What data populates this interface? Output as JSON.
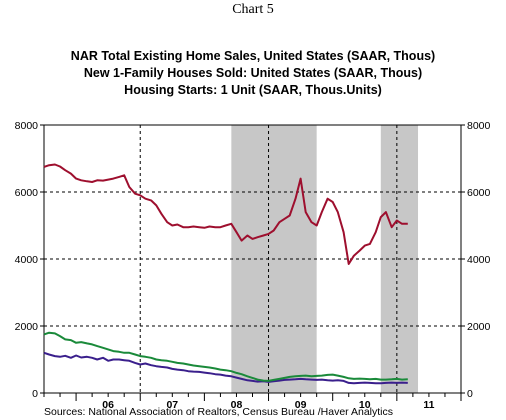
{
  "chart_data": {
    "type": "line",
    "chart_number": "Chart 5",
    "source": "Sources:  National Association of Realtors, Census Bureau /Haver Analytics",
    "ylim": [
      0,
      8000
    ],
    "y_ticks": [
      "0",
      "2000",
      "4000",
      "6000",
      "8000"
    ],
    "y_tick_values": [
      0,
      2000,
      4000,
      6000,
      8000
    ],
    "x_tick_labels": [
      "06",
      "07",
      "08",
      "09",
      "10",
      "11"
    ],
    "x_tick_positions": [
      2006.5,
      2007.5,
      2008.5,
      2009.5,
      2010.5,
      2011.5
    ],
    "xlim": [
      2005.5,
      2012.0
    ],
    "recession_shading": [
      [
        2008.42,
        2009.75
      ],
      [
        2010.75,
        2011.33
      ]
    ],
    "grid": "dashed",
    "series": [
      {
        "name": "NAR Total Existing Home Sales, United States (SAAR, Thous)",
        "color": "#9e0f2e",
        "x": [
          2005.5,
          2005.58,
          2005.67,
          2005.75,
          2005.83,
          2005.92,
          2006.0,
          2006.08,
          2006.17,
          2006.25,
          2006.33,
          2006.42,
          2006.5,
          2006.58,
          2006.67,
          2006.75,
          2006.83,
          2006.92,
          2007.0,
          2007.08,
          2007.17,
          2007.25,
          2007.33,
          2007.42,
          2007.5,
          2007.58,
          2007.67,
          2007.75,
          2007.83,
          2007.92,
          2008.0,
          2008.08,
          2008.17,
          2008.25,
          2008.33,
          2008.42,
          2008.5,
          2008.58,
          2008.67,
          2008.75,
          2008.83,
          2008.92,
          2009.0,
          2009.08,
          2009.17,
          2009.25,
          2009.33,
          2009.42,
          2009.5,
          2009.58,
          2009.67,
          2009.75,
          2009.83,
          2009.92,
          2010.0,
          2010.08,
          2010.17,
          2010.25,
          2010.33,
          2010.42,
          2010.5,
          2010.58,
          2010.67,
          2010.75,
          2010.83,
          2010.92,
          2011.0,
          2011.08,
          2011.17
        ],
        "values": [
          6750,
          6800,
          6820,
          6760,
          6650,
          6550,
          6400,
          6350,
          6320,
          6300,
          6350,
          6340,
          6370,
          6400,
          6450,
          6500,
          6150,
          5950,
          5900,
          5800,
          5750,
          5600,
          5350,
          5100,
          5000,
          5030,
          4950,
          4950,
          4970,
          4950,
          4930,
          4970,
          4950,
          4950,
          5000,
          5050,
          4800,
          4550,
          4700,
          4600,
          4650,
          4700,
          4750,
          4850,
          5100,
          5200,
          5300,
          5800,
          6400,
          5400,
          5100,
          5000,
          5400,
          5800,
          5700,
          5400,
          4800,
          3850,
          4100,
          4250,
          4400,
          4450,
          4800,
          5250,
          5400,
          4950,
          5150,
          5050,
          5050
        ]
      },
      {
        "name": "New 1-Family Houses Sold: United States (SAAR, Thous)",
        "color": "#3a1f8c",
        "x": [
          2005.5,
          2005.58,
          2005.67,
          2005.75,
          2005.83,
          2005.92,
          2006.0,
          2006.08,
          2006.17,
          2006.25,
          2006.33,
          2006.42,
          2006.5,
          2006.58,
          2006.67,
          2006.75,
          2006.83,
          2006.92,
          2007.0,
          2007.08,
          2007.17,
          2007.25,
          2007.33,
          2007.42,
          2007.5,
          2007.58,
          2007.67,
          2007.75,
          2007.83,
          2007.92,
          2008.0,
          2008.08,
          2008.17,
          2008.25,
          2008.33,
          2008.42,
          2008.5,
          2008.58,
          2008.67,
          2008.75,
          2008.83,
          2008.92,
          2009.0,
          2009.08,
          2009.17,
          2009.25,
          2009.33,
          2009.42,
          2009.5,
          2009.58,
          2009.67,
          2009.75,
          2009.83,
          2009.92,
          2010.0,
          2010.08,
          2010.17,
          2010.25,
          2010.33,
          2010.42,
          2010.5,
          2010.58,
          2010.67,
          2010.75,
          2010.83,
          2010.92,
          2011.0,
          2011.08,
          2011.17
        ],
        "values": [
          1200,
          1150,
          1100,
          1080,
          1110,
          1050,
          1120,
          1060,
          1080,
          1050,
          1000,
          1050,
          960,
          1000,
          1000,
          980,
          960,
          900,
          850,
          880,
          830,
          800,
          780,
          760,
          720,
          700,
          680,
          650,
          640,
          630,
          610,
          590,
          560,
          550,
          520,
          500,
          460,
          420,
          380,
          360,
          340,
          350,
          330,
          350,
          370,
          390,
          400,
          410,
          420,
          410,
          400,
          390,
          400,
          380,
          370,
          380,
          360,
          300,
          290,
          300,
          310,
          300,
          290,
          290,
          300,
          310,
          300,
          310,
          300
        ]
      },
      {
        "name": "Housing Starts: 1 Unit (SAAR, Thous.Units)",
        "color": "#1a8a3a",
        "x": [
          2005.5,
          2005.58,
          2005.67,
          2005.75,
          2005.83,
          2005.92,
          2006.0,
          2006.08,
          2006.17,
          2006.25,
          2006.33,
          2006.42,
          2006.5,
          2006.58,
          2006.67,
          2006.75,
          2006.83,
          2006.92,
          2007.0,
          2007.08,
          2007.17,
          2007.25,
          2007.33,
          2007.42,
          2007.5,
          2007.58,
          2007.67,
          2007.75,
          2007.83,
          2007.92,
          2008.0,
          2008.08,
          2008.17,
          2008.25,
          2008.33,
          2008.42,
          2008.5,
          2008.58,
          2008.67,
          2008.75,
          2008.83,
          2008.92,
          2009.0,
          2009.08,
          2009.17,
          2009.25,
          2009.33,
          2009.42,
          2009.5,
          2009.58,
          2009.67,
          2009.75,
          2009.83,
          2009.92,
          2010.0,
          2010.08,
          2010.17,
          2010.25,
          2010.33,
          2010.42,
          2010.5,
          2010.58,
          2010.67,
          2010.75,
          2010.83,
          2010.92,
          2011.0,
          2011.08,
          2011.17
        ],
        "values": [
          1750,
          1800,
          1780,
          1700,
          1600,
          1580,
          1500,
          1520,
          1480,
          1450,
          1400,
          1350,
          1300,
          1250,
          1230,
          1200,
          1200,
          1150,
          1100,
          1080,
          1050,
          1000,
          980,
          960,
          930,
          900,
          880,
          850,
          820,
          800,
          780,
          760,
          730,
          700,
          680,
          650,
          600,
          560,
          500,
          450,
          400,
          370,
          360,
          390,
          420,
          450,
          480,
          500,
          510,
          520,
          500,
          510,
          520,
          540,
          550,
          520,
          480,
          440,
          420,
          430,
          420,
          410,
          420,
          400,
          400,
          410,
          420,
          400,
          410
        ]
      }
    ]
  }
}
